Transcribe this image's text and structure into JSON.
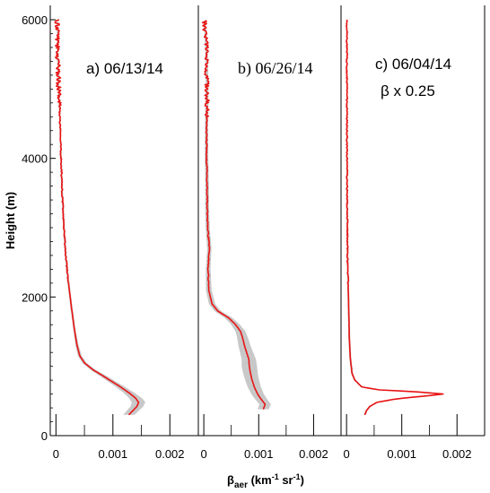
{
  "chart_data": {
    "type": "line",
    "ylabel": "Height (m)",
    "xlabel_main": "β",
    "xlabel_sub": "aer",
    "xlabel_units_a": " (km",
    "xlabel_sup1": "-1",
    "xlabel_units_b": " sr",
    "xlabel_sup2": "-1",
    "xlabel_units_c": ")",
    "ylim": [
      0,
      6000
    ],
    "yticks": [
      0,
      2000,
      4000,
      6000
    ],
    "ytick_labels": [
      "0",
      "2000",
      "4000",
      "6000"
    ],
    "xlim": [
      -0.0001,
      0.0025
    ],
    "xticks": [
      0,
      0.001,
      0.002
    ],
    "xtick_labels": [
      "0",
      "0.001",
      "0.002"
    ],
    "colors": {
      "line": "#e81414",
      "band": "#c8c8c8",
      "axis": "#000000"
    },
    "panels": [
      {
        "id": "a",
        "label": "a) 06/13/14",
        "label2": "",
        "noisy_above": 4700,
        "profile": [
          [
            300,
            0.00128
          ],
          [
            360,
            0.00135
          ],
          [
            420,
            0.00142
          ],
          [
            480,
            0.00145
          ],
          [
            540,
            0.0014
          ],
          [
            620,
            0.00128
          ],
          [
            720,
            0.0011
          ],
          [
            850,
            0.00085
          ],
          [
            950,
            0.00065
          ],
          [
            1050,
            0.0005
          ],
          [
            1150,
            0.00042
          ],
          [
            1300,
            0.00037
          ],
          [
            1500,
            0.00033
          ],
          [
            1800,
            0.00028
          ],
          [
            2200,
            0.00022
          ],
          [
            2600,
            0.00017
          ],
          [
            3000,
            0.00014
          ],
          [
            3500,
            0.00011
          ],
          [
            4000,
            9e-05
          ],
          [
            4500,
            7e-05
          ],
          [
            5000,
            5e-05
          ],
          [
            5500,
            3e-05
          ],
          [
            6000,
            2e-05
          ]
        ],
        "band_halfwidth": [
          [
            300,
            0.0001
          ],
          [
            500,
            0.00012
          ],
          [
            700,
            8e-05
          ],
          [
            1000,
            4e-05
          ],
          [
            1500,
            2e-05
          ],
          [
            6000,
            1e-05
          ]
        ]
      },
      {
        "id": "b",
        "label": "b) 06/26/14",
        "label2": "",
        "noisy_above": 4600,
        "profile": [
          [
            380,
            0.00108
          ],
          [
            450,
            0.00112
          ],
          [
            520,
            0.00105
          ],
          [
            600,
            0.00098
          ],
          [
            700,
            0.00092
          ],
          [
            800,
            0.00088
          ],
          [
            900,
            0.00085
          ],
          [
            1000,
            0.00083
          ],
          [
            1100,
            0.00082
          ],
          [
            1200,
            0.00078
          ],
          [
            1300,
            0.00074
          ],
          [
            1400,
            0.00071
          ],
          [
            1500,
            0.00067
          ],
          [
            1600,
            0.00058
          ],
          [
            1700,
            0.00045
          ],
          [
            1800,
            0.00025
          ],
          [
            1900,
            0.00015
          ],
          [
            2100,
            9e-05
          ],
          [
            2400,
            8e-05
          ],
          [
            2700,
            0.0001
          ],
          [
            3000,
            7e-05
          ],
          [
            3300,
            6e-05
          ],
          [
            3600,
            6e-05
          ],
          [
            4000,
            5e-05
          ],
          [
            4500,
            5e-05
          ],
          [
            5000,
            6e-05
          ],
          [
            5500,
            5e-05
          ],
          [
            5800,
            3e-05
          ],
          [
            6000,
            1e-05
          ]
        ],
        "band_halfwidth": [
          [
            380,
            0.0001
          ],
          [
            700,
            0.00012
          ],
          [
            1000,
            0.00014
          ],
          [
            1400,
            0.0001
          ],
          [
            1800,
            6e-05
          ],
          [
            2500,
            4e-05
          ],
          [
            6000,
            2e-05
          ]
        ]
      },
      {
        "id": "c",
        "label": "c) 06/04/14",
        "label2": "β x 0.25",
        "noisy_above": 100000,
        "profile": [
          [
            300,
            0.00033
          ],
          [
            360,
            0.00036
          ],
          [
            420,
            0.00042
          ],
          [
            480,
            0.00055
          ],
          [
            530,
            0.0009
          ],
          [
            570,
            0.0014
          ],
          [
            600,
            0.00175
          ],
          [
            630,
            0.0013
          ],
          [
            660,
            0.0006
          ],
          [
            700,
            0.00028
          ],
          [
            800,
            0.00015
          ],
          [
            900,
            0.0001
          ],
          [
            1100,
            7e-05
          ],
          [
            1400,
            5e-05
          ],
          [
            1800,
            4e-05
          ],
          [
            2500,
            2e-05
          ],
          [
            3500,
            1e-05
          ],
          [
            6000,
            5e-06
          ]
        ],
        "band_halfwidth": [
          [
            300,
            2e-05
          ],
          [
            6000,
            1e-05
          ]
        ]
      }
    ]
  }
}
